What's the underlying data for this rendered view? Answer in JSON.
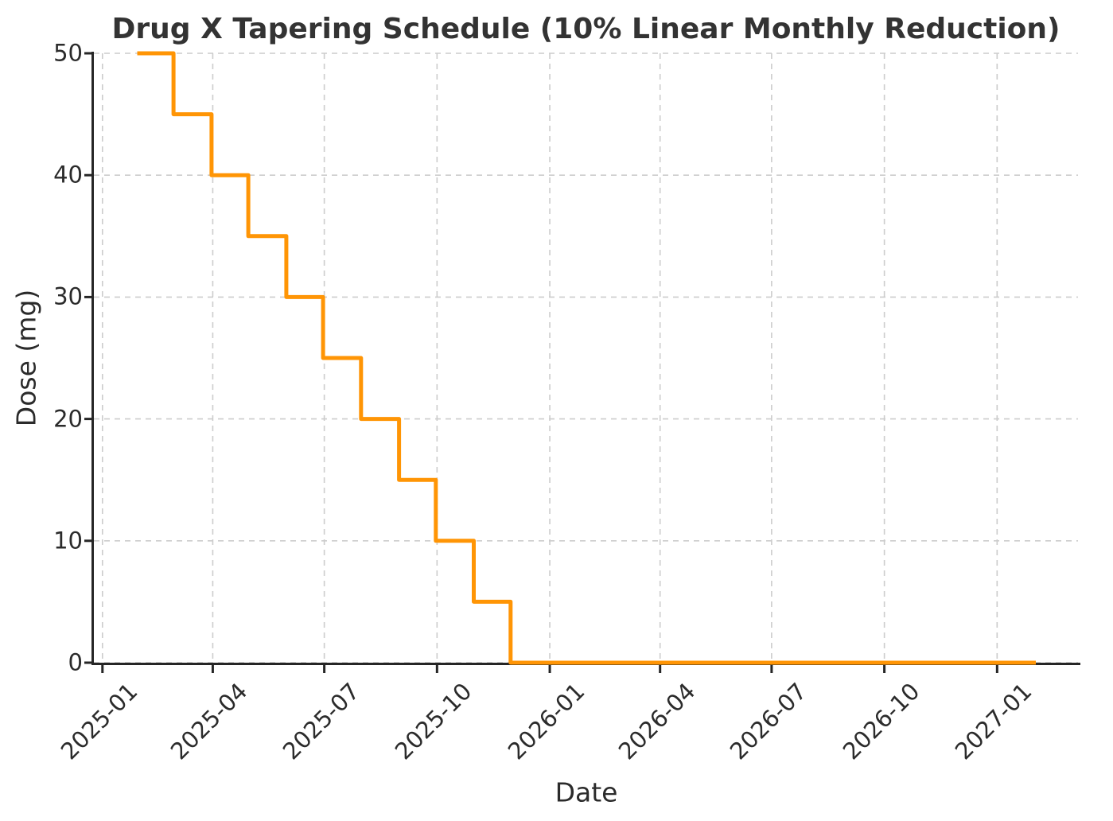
{
  "chart_data": {
    "type": "line",
    "step": "post",
    "title": "Drug X Tapering Schedule (10% Linear Monthly Reduction)",
    "xlabel": "Date",
    "ylabel": "Dose (mg)",
    "x": [
      "2025-01-31",
      "2025-02-28",
      "2025-03-31",
      "2025-04-30",
      "2025-05-31",
      "2025-06-30",
      "2025-07-31",
      "2025-08-31",
      "2025-09-30",
      "2025-10-31",
      "2025-11-30",
      "2025-12-31",
      "2026-01-31",
      "2026-02-28",
      "2026-03-31",
      "2026-04-30",
      "2026-05-31",
      "2026-06-30",
      "2026-07-31",
      "2026-08-31",
      "2026-09-30",
      "2026-10-31",
      "2026-11-30",
      "2026-12-31",
      "2027-01-31"
    ],
    "values": [
      50,
      45,
      40,
      35,
      30,
      25,
      20,
      15,
      10,
      5,
      0,
      0,
      0,
      0,
      0,
      0,
      0,
      0,
      0,
      0,
      0,
      0,
      0,
      0,
      0
    ],
    "x_ticks": [
      "2025-01",
      "2025-04",
      "2025-07",
      "2025-10",
      "2026-01",
      "2026-04",
      "2026-07",
      "2026-10",
      "2027-01"
    ],
    "y_ticks": [
      0,
      10,
      20,
      30,
      40,
      50
    ],
    "ylim": [
      0,
      50
    ],
    "xlim": [
      "2024-12-25",
      "2027-03-08"
    ],
    "grid": true,
    "legend": "none",
    "line_color": "#FF9505",
    "grid_color": "#cccccc",
    "axis_color": "#262626"
  }
}
